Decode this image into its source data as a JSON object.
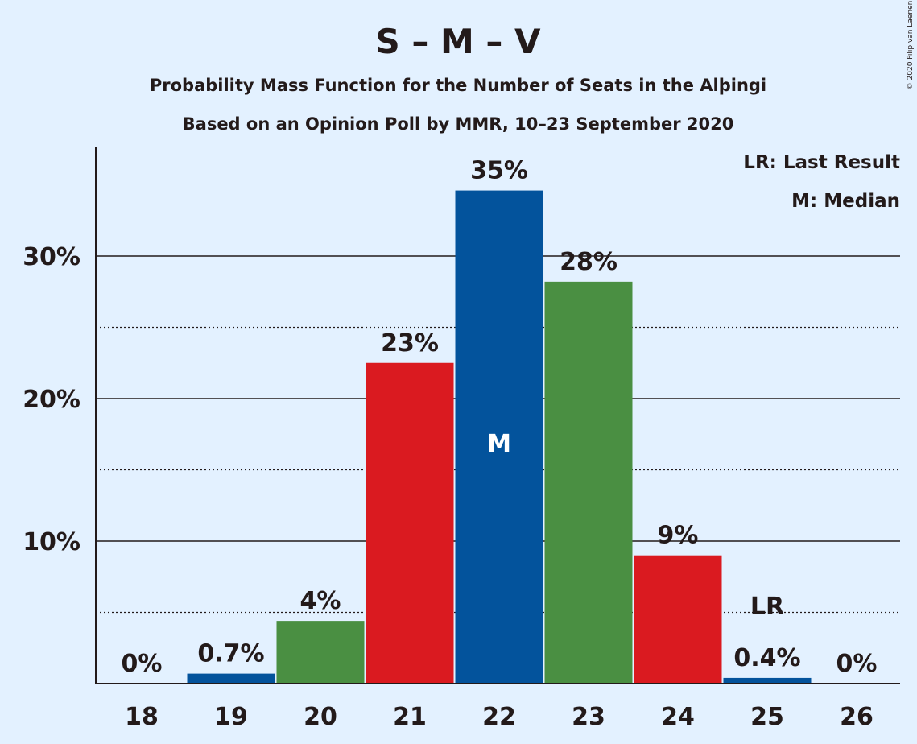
{
  "chart_data": {
    "type": "bar",
    "title": "S – M – V",
    "subtitle_line1": "Probability Mass Function for the Number of Seats in the Alþingi",
    "subtitle_line2": "Based on an Opinion Poll by MMR, 10–23 September 2020",
    "copyright": "© 2020 Filip van Laenen",
    "legend": {
      "last_result": "LR: Last Result",
      "median": "M: Median",
      "position": "top-right"
    },
    "categories": [
      "18",
      "19",
      "20",
      "21",
      "22",
      "23",
      "24",
      "25",
      "26"
    ],
    "values": [
      0,
      0.7,
      4.4,
      22.5,
      34.6,
      28.2,
      9.0,
      0.4,
      0
    ],
    "value_labels": [
      "0%",
      "0.7%",
      "4%",
      "23%",
      "35%",
      "28%",
      "9%",
      "0.4%",
      "0%"
    ],
    "bar_colors": [
      "#03539c",
      "#03539c",
      "#4a8f42",
      "#da1a20",
      "#03539c",
      "#4a8f42",
      "#da1a20",
      "#03539c",
      "#4a8f42"
    ],
    "median_category": "22",
    "median_marker": "M",
    "last_result_category": "25",
    "last_result_marker": "LR",
    "yticks": [
      10,
      20,
      30
    ],
    "ytick_labels": [
      "10%",
      "20%",
      "30%"
    ],
    "ylim": [
      0,
      37.6
    ],
    "grid": {
      "major": [
        10,
        20,
        30
      ],
      "minor": [
        5,
        15,
        25
      ]
    }
  }
}
